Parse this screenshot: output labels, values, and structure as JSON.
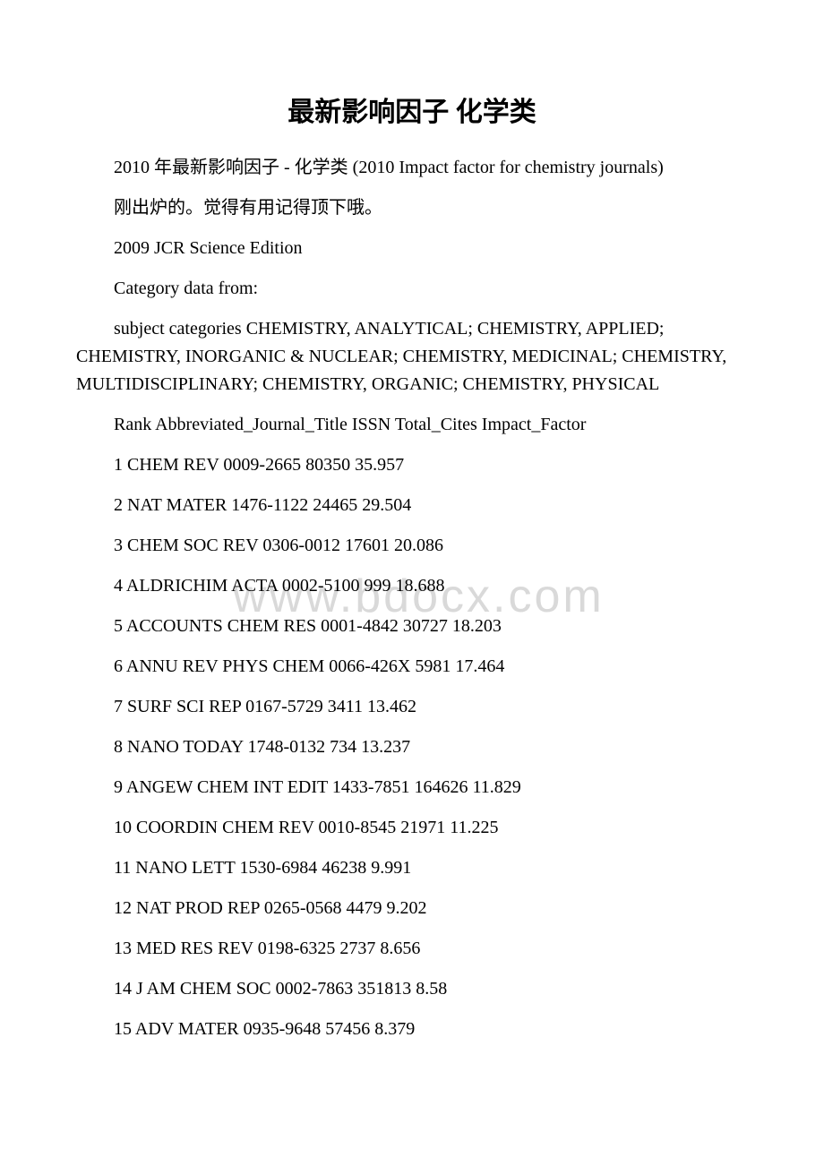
{
  "title": "最新影响因子 化学类",
  "watermark": "www.bdocx.com",
  "paragraphs": [
    "2010 年最新影响因子 - 化学类 (2010 Impact factor for chemistry journals)",
    "刚出炉的。觉得有用记得顶下哦。",
    "2009 JCR Science Edition",
    "Category data from:",
    "subject categories CHEMISTRY, ANALYTICAL; CHEMISTRY, APPLIED; CHEMISTRY, INORGANIC & NUCLEAR; CHEMISTRY, MEDICINAL; CHEMISTRY, MULTIDISCIPLINARY; CHEMISTRY, ORGANIC; CHEMISTRY, PHYSICAL",
    "Rank Abbreviated_Journal_Title ISSN Total_Cites Impact_Factor"
  ],
  "entries": [
    "1 CHEM REV 0009-2665 80350 35.957",
    "2 NAT MATER 1476-1122 24465 29.504",
    "3 CHEM SOC REV 0306-0012 17601 20.086",
    "4 ALDRICHIM ACTA 0002-5100 999 18.688",
    "5 ACCOUNTS CHEM RES 0001-4842 30727 18.203",
    "6 ANNU REV PHYS CHEM 0066-426X 5981 17.464",
    "7 SURF SCI REP 0167-5729 3411 13.462",
    "8 NANO TODAY 1748-0132 734 13.237",
    "9 ANGEW CHEM INT EDIT 1433-7851 164626 11.829",
    "10 COORDIN CHEM REV 0010-8545 21971 11.225",
    "11 NANO LETT 1530-6984 46238 9.991",
    "12 NAT PROD REP 0265-0568 4479 9.202",
    "13 MED RES REV 0198-6325 2737 8.656",
    "14 J AM CHEM SOC 0002-7863 351813 8.58",
    "15 ADV MATER 0935-9648 57456 8.379"
  ]
}
